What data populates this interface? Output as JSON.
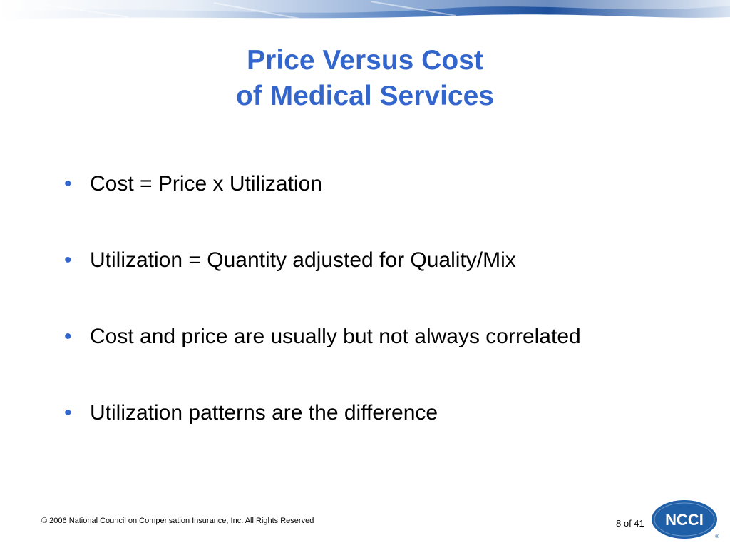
{
  "slide": {
    "title_line1": "Price Versus Cost",
    "title_line2": "of Medical Services",
    "bullets": [
      "Cost = Price x Utilization",
      "Utilization = Quantity adjusted for Quality/Mix",
      "Cost and price are usually but not always correlated",
      "Utilization patterns are the difference"
    ]
  },
  "footer": {
    "copyright": "© 2006 National Council on Compensation Insurance, Inc. All Rights Reserved",
    "page_indicator": "8 of 41"
  },
  "logo": {
    "text": "NCCI",
    "registered": "®"
  },
  "colors": {
    "accent": "#3366cc",
    "logo_blue": "#1f5fa8"
  }
}
